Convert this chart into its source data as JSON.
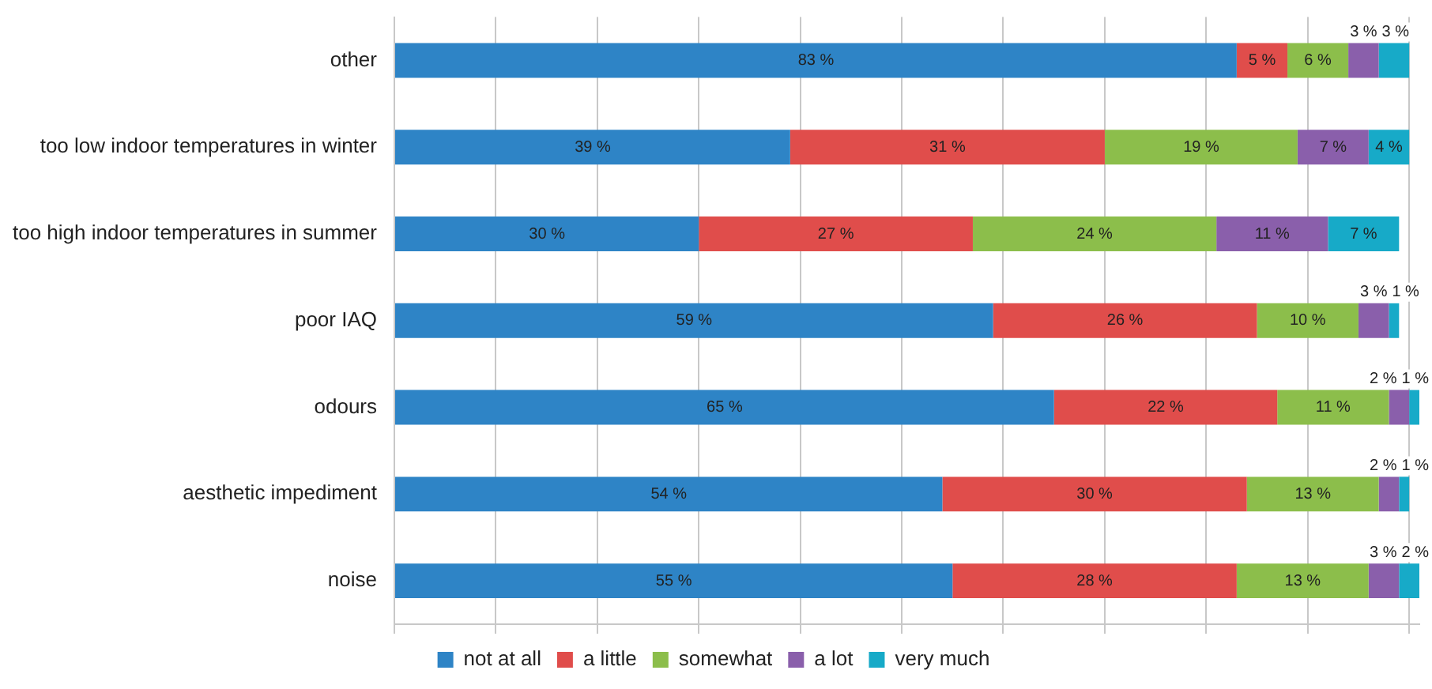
{
  "chart_data": {
    "type": "bar",
    "orientation": "horizontal",
    "stacked": true,
    "categories": [
      "other",
      "too low indoor temperatures in winter",
      "too high indoor temperatures in summer",
      "poor IAQ",
      "odours",
      "aesthetic impediment",
      "noise"
    ],
    "series": [
      {
        "name": "not at all",
        "color": "#2e84c6",
        "values": [
          83,
          39,
          30,
          59,
          65,
          54,
          55
        ],
        "value_labels": [
          "83 %",
          "39 %",
          "30 %",
          "59 %",
          "65 %",
          "54 %",
          "55 %"
        ]
      },
      {
        "name": "a little",
        "color": "#e04d4b",
        "values": [
          5,
          31,
          27,
          26,
          22,
          30,
          28
        ],
        "value_labels": [
          "5 %",
          "31 %",
          "27 %",
          "26 %",
          "22 %",
          "30 %",
          "28 %"
        ]
      },
      {
        "name": "somewhat",
        "color": "#8cbe4b",
        "values": [
          6,
          19,
          24,
          10,
          11,
          13,
          13
        ],
        "value_labels": [
          "6 %",
          "19 %",
          "24 %",
          "10 %",
          "11 %",
          "13 %",
          "13 %"
        ]
      },
      {
        "name": "a lot",
        "color": "#8a5fab",
        "values": [
          3,
          7,
          11,
          3,
          2,
          2,
          3
        ],
        "value_labels": [
          "3 %",
          "7 %",
          "11 %",
          "3 %",
          "2 %",
          "2 %",
          "3 %"
        ]
      },
      {
        "name": "very much",
        "color": "#17aac8",
        "values": [
          3,
          4,
          7,
          1,
          1,
          1,
          2
        ],
        "value_labels": [
          "3 %",
          "4 %",
          "7 %",
          "1 %",
          "1 %",
          "1 %",
          "2 %"
        ]
      }
    ],
    "xlim": [
      0,
      101
    ],
    "xticks": [
      {
        "value": 0,
        "label": null
      },
      {
        "value": 10,
        "label": null
      },
      {
        "value": 20,
        "label": null
      },
      {
        "value": 30,
        "label": null
      },
      {
        "value": 40,
        "label": null
      },
      {
        "value": 50,
        "label": null
      },
      {
        "value": 60,
        "label": null
      },
      {
        "value": 70,
        "label": null
      },
      {
        "value": 80,
        "label": null
      },
      {
        "value": 90,
        "label": null
      },
      {
        "value": 100,
        "label": null
      }
    ],
    "tick_labels": "y",
    "grid": "x",
    "legend": "bottom"
  }
}
